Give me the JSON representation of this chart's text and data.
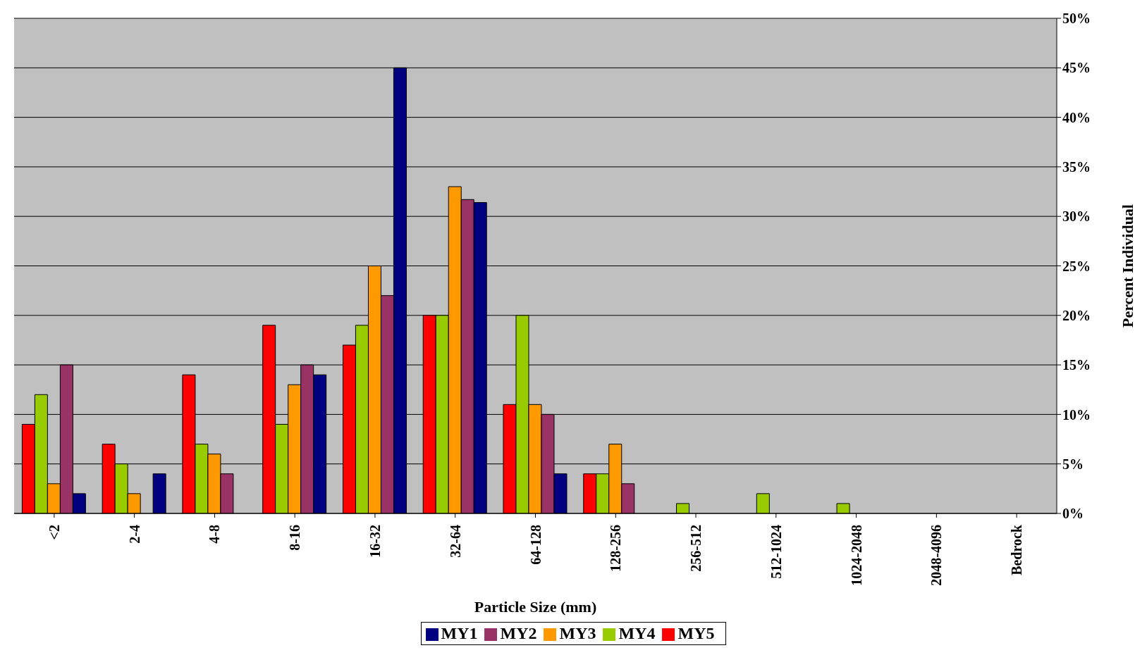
{
  "chart_data": {
    "type": "bar",
    "xlabel": "Particle Size (mm)",
    "ylabel": "Percent Individual",
    "categories": [
      "<2",
      "2-4",
      "4-8",
      "8-16",
      "16-32",
      "32-64",
      "64-128",
      "128-256",
      "256-512",
      "512-1024",
      "1024-2048",
      "2048-4096",
      "Bedrock"
    ],
    "series": [
      {
        "name": "MY5",
        "color": "#ff0000",
        "values": [
          9,
          7,
          14,
          19,
          17,
          20,
          11,
          4,
          0,
          0,
          0,
          0,
          0
        ]
      },
      {
        "name": "MY4",
        "color": "#99cc00",
        "values": [
          12,
          5,
          7,
          9,
          19,
          20,
          20,
          4,
          1,
          2,
          1,
          0,
          0
        ]
      },
      {
        "name": "MY3",
        "color": "#ff9900",
        "values": [
          3,
          2,
          6,
          13,
          25,
          33,
          11,
          7,
          0,
          0,
          0,
          0,
          0
        ]
      },
      {
        "name": "MY2",
        "color": "#993366",
        "values": [
          15,
          0,
          4,
          15,
          22,
          31.7,
          10,
          3,
          0,
          0,
          0,
          0,
          0
        ]
      },
      {
        "name": "MY1",
        "color": "#000080",
        "values": [
          2,
          4,
          0,
          14,
          45,
          31.4,
          4,
          0,
          0,
          0,
          0,
          0,
          0
        ]
      }
    ],
    "ylim": [
      0,
      50
    ],
    "yticks": [
      {
        "value": 0,
        "label": "0%"
      },
      {
        "value": 5,
        "label": "5%"
      },
      {
        "value": 10,
        "label": "10%"
      },
      {
        "value": 15,
        "label": "15%"
      },
      {
        "value": 20,
        "label": "20%"
      },
      {
        "value": 25,
        "label": "25%"
      },
      {
        "value": 30,
        "label": "30%"
      },
      {
        "value": 35,
        "label": "35%"
      },
      {
        "value": 40,
        "label": "40%"
      },
      {
        "value": 45,
        "label": "45%"
      },
      {
        "value": 50,
        "label": "50%"
      }
    ],
    "grid": "y",
    "legend": "bottom"
  }
}
